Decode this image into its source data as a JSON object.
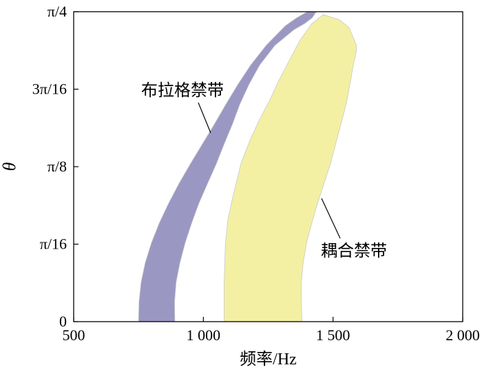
{
  "chart_data": {
    "type": "area",
    "xlabel": "频率/Hz",
    "ylabel": "θ",
    "xlim": [
      500,
      2000
    ],
    "ylim": [
      0,
      0.785398
    ],
    "x_ticks": [
      {
        "value": 500,
        "label": "500"
      },
      {
        "value": 1000,
        "label": "1 000"
      },
      {
        "value": 1500,
        "label": "1 500"
      },
      {
        "value": 2000,
        "label": "2 000"
      }
    ],
    "y_ticks": [
      {
        "value": 0,
        "label": "0"
      },
      {
        "value": 0.19635,
        "label": "π/16"
      },
      {
        "value": 0.392699,
        "label": "π/8"
      },
      {
        "value": 0.589049,
        "label": "3π/16"
      },
      {
        "value": 0.785398,
        "label": "π/4"
      }
    ],
    "grid": false,
    "series": [
      {
        "name": "布拉格禁带",
        "color": "#9b97c3",
        "lower_boundary": [
          [
            750,
            0
          ],
          [
            752,
            0.05
          ],
          [
            760,
            0.1
          ],
          [
            776,
            0.15
          ],
          [
            800,
            0.2
          ],
          [
            830,
            0.25
          ],
          [
            866,
            0.3
          ],
          [
            906,
            0.35
          ],
          [
            950,
            0.4
          ],
          [
            996,
            0.45
          ],
          [
            1042,
            0.5
          ],
          [
            1086,
            0.55
          ],
          [
            1132,
            0.6
          ],
          [
            1182,
            0.65
          ],
          [
            1242,
            0.7
          ],
          [
            1316,
            0.75
          ],
          [
            1360,
            0.77
          ],
          [
            1400,
            0.785
          ]
        ],
        "upper_boundary": [
          [
            890,
            0
          ],
          [
            889,
            0.05
          ],
          [
            895,
            0.1
          ],
          [
            910,
            0.15
          ],
          [
            930,
            0.2
          ],
          [
            955,
            0.25
          ],
          [
            983,
            0.3
          ],
          [
            1016,
            0.35
          ],
          [
            1050,
            0.4
          ],
          [
            1080,
            0.45
          ],
          [
            1112,
            0.5
          ],
          [
            1140,
            0.55
          ],
          [
            1175,
            0.6
          ],
          [
            1217,
            0.65
          ],
          [
            1276,
            0.7
          ],
          [
            1350,
            0.74
          ],
          [
            1390,
            0.755
          ],
          [
            1420,
            0.77
          ],
          [
            1435,
            0.785
          ]
        ]
      },
      {
        "name": "耦合禁带",
        "color": "#f3f0a3",
        "lower_boundary": [
          [
            1080,
            0
          ],
          [
            1080,
            0.1
          ],
          [
            1085,
            0.2
          ],
          [
            1095,
            0.26
          ],
          [
            1115,
            0.32
          ],
          [
            1145,
            0.4
          ],
          [
            1180,
            0.46
          ],
          [
            1215,
            0.51
          ],
          [
            1255,
            0.56
          ],
          [
            1290,
            0.61
          ],
          [
            1330,
            0.66
          ],
          [
            1370,
            0.71
          ],
          [
            1418,
            0.755
          ],
          [
            1462,
            0.778
          ]
        ],
        "upper_boundary": [
          [
            1380,
            0
          ],
          [
            1378,
            0.05
          ],
          [
            1378,
            0.1
          ],
          [
            1385,
            0.15
          ],
          [
            1398,
            0.2
          ],
          [
            1418,
            0.25
          ],
          [
            1440,
            0.3
          ],
          [
            1465,
            0.35
          ],
          [
            1490,
            0.4
          ],
          [
            1510,
            0.45
          ],
          [
            1530,
            0.5
          ],
          [
            1550,
            0.55
          ],
          [
            1565,
            0.6
          ],
          [
            1578,
            0.65
          ],
          [
            1590,
            0.685
          ],
          [
            1590,
            0.7
          ],
          [
            1562,
            0.745
          ],
          [
            1525,
            0.765
          ],
          [
            1462,
            0.778
          ]
        ]
      }
    ],
    "annotations": [
      {
        "text": "布拉格禁带",
        "target_series": "布拉格禁带"
      },
      {
        "text": "耦合禁带",
        "target_series": "耦合禁带"
      }
    ]
  }
}
